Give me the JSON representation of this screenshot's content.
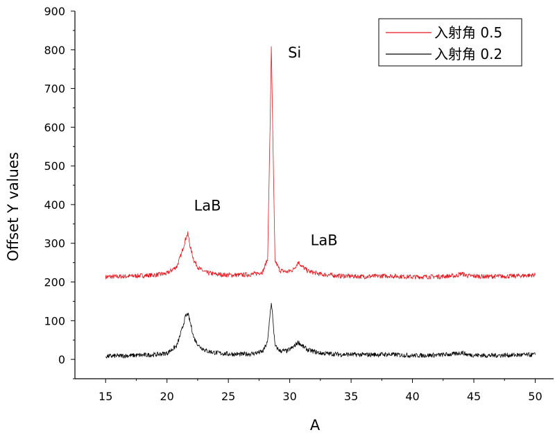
{
  "chart_data": {
    "type": "line",
    "xlabel": "A",
    "ylabel": "Offset Y values",
    "xlim": [
      12.5,
      51.5
    ],
    "ylim": [
      -50,
      900
    ],
    "xticks": [
      15,
      20,
      25,
      30,
      35,
      40,
      45,
      50
    ],
    "yticks": [
      0,
      100,
      200,
      300,
      400,
      500,
      600,
      700,
      800,
      900
    ],
    "tick_labels_x": [
      "15",
      "20",
      "25",
      "30",
      "35",
      "40",
      "45",
      "50"
    ],
    "tick_labels_y": [
      "0",
      "100",
      "200",
      "300",
      "400",
      "500",
      "600",
      "700",
      "800",
      "900"
    ],
    "grid": false,
    "legend_position": "top-right",
    "series": [
      {
        "name": "入射角 0.5",
        "color": "#e8141c",
        "x": [
          15,
          17,
          19,
          20,
          20.8,
          21.2,
          21.5,
          21.7,
          21.9,
          22.2,
          22.6,
          23.2,
          24,
          25,
          26,
          27,
          27.8,
          28.2,
          28.4,
          28.5,
          28.6,
          28.8,
          29.2,
          29.8,
          30.3,
          30.7,
          31,
          31.5,
          32.5,
          34,
          36,
          38,
          40,
          42,
          43.5,
          44,
          44.5,
          46,
          48,
          50
        ],
        "y": [
          213,
          215,
          218,
          222,
          240,
          275,
          310,
          325,
          290,
          255,
          235,
          224,
          220,
          218,
          218,
          220,
          226,
          260,
          600,
          812,
          620,
          255,
          230,
          226,
          232,
          252,
          240,
          228,
          220,
          216,
          214,
          216,
          213,
          214,
          216,
          222,
          216,
          214,
          215,
          218
        ]
      },
      {
        "name": "入射角 0.2",
        "color": "#000000",
        "x": [
          15,
          17,
          19,
          20,
          20.8,
          21.2,
          21.5,
          21.7,
          21.9,
          22.2,
          22.6,
          23.2,
          24,
          25,
          26,
          27,
          27.8,
          28.2,
          28.4,
          28.5,
          28.6,
          28.8,
          29.2,
          29.8,
          30.3,
          30.7,
          31,
          31.5,
          32.5,
          34,
          36,
          38,
          40,
          42,
          43.5,
          44,
          44.5,
          46,
          48,
          50
        ],
        "y": [
          8,
          10,
          12,
          16,
          35,
          75,
          110,
          118,
          95,
          55,
          35,
          22,
          17,
          14,
          13,
          15,
          20,
          45,
          120,
          143,
          115,
          35,
          22,
          22,
          32,
          45,
          35,
          24,
          16,
          13,
          12,
          13,
          10,
          11,
          14,
          18,
          12,
          10,
          11,
          12
        ]
      }
    ],
    "annotations": [
      {
        "text": "Si",
        "x": 30.4,
        "y": 780
      },
      {
        "text": "LaB",
        "x": 23.3,
        "y": 385
      },
      {
        "text": "LaB",
        "x": 32.8,
        "y": 295
      }
    ]
  }
}
